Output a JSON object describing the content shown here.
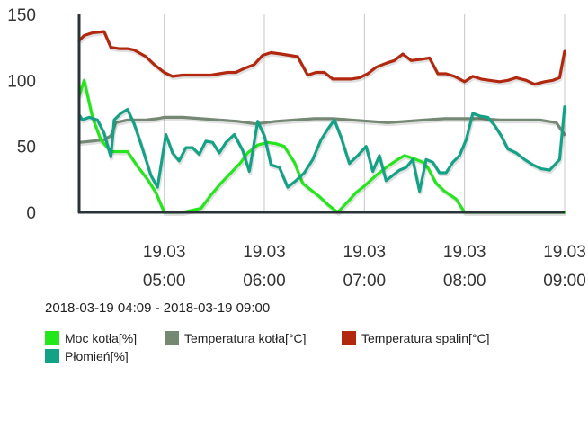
{
  "chart_data": {
    "type": "line",
    "title": "",
    "xlabel": "",
    "ylabel": "",
    "ylim": [
      0,
      150
    ],
    "yticks": [
      0,
      50,
      100,
      150
    ],
    "xlim": [
      "2018-03-19 04:09",
      "2018-03-19 09:00"
    ],
    "xticks": [
      {
        "t": "2018-03-19 05:00",
        "date": "19.03",
        "time": "05:00"
      },
      {
        "t": "2018-03-19 06:00",
        "date": "19.03",
        "time": "06:00"
      },
      {
        "t": "2018-03-19 07:00",
        "date": "19.03",
        "time": "07:00"
      },
      {
        "t": "2018-03-19 08:00",
        "date": "19.03",
        "time": "08:00"
      },
      {
        "t": "2018-03-19 09:00",
        "date": "19.03",
        "time": "09:00"
      }
    ],
    "grid": "vertical",
    "legend_position": "bottom",
    "range_label": "2018-03-19 04:09 - 2018-03-19 09:00",
    "series": [
      {
        "name": "Temperatura spalin[°C]",
        "color": "#b2280e",
        "x": [
          "04:09",
          "04:12",
          "04:17",
          "04:24",
          "04:28",
          "04:33",
          "04:38",
          "04:42",
          "04:49",
          "04:54",
          "05:00",
          "05:05",
          "05:11",
          "05:17",
          "05:23",
          "05:28",
          "05:33",
          "05:38",
          "05:43",
          "05:48",
          "05:54",
          "05:59",
          "06:04",
          "06:10",
          "06:15",
          "06:20",
          "06:26",
          "06:31",
          "06:36",
          "06:41",
          "06:46",
          "06:52",
          "06:57",
          "07:02",
          "07:07",
          "07:13",
          "07:18",
          "07:23",
          "07:28",
          "07:34",
          "07:39",
          "07:44",
          "07:49",
          "07:54",
          "08:00",
          "08:05",
          "08:10",
          "08:15",
          "08:21",
          "08:26",
          "08:31",
          "08:37",
          "08:42",
          "08:48",
          "08:53",
          "08:57",
          "09:00"
        ],
        "y": [
          130,
          134,
          136,
          137,
          125,
          124,
          124,
          123,
          118,
          112,
          106,
          103,
          104,
          104,
          104,
          104,
          105,
          106,
          106,
          109,
          112,
          119,
          121,
          120,
          119,
          118,
          104,
          106,
          106,
          101,
          101,
          101,
          102,
          105,
          110,
          113,
          115,
          120,
          115,
          116,
          117,
          105,
          105,
          103,
          99,
          103,
          101,
          100,
          99,
          100,
          102,
          100,
          97,
          99,
          100,
          102,
          122
        ]
      },
      {
        "name": "Temperatura kotła[°C]",
        "color": "#748873",
        "x": [
          "04:09",
          "04:17",
          "04:24",
          "04:28",
          "04:31",
          "04:38",
          "04:49",
          "04:56",
          "05:00",
          "05:11",
          "05:22",
          "05:33",
          "05:44",
          "05:55",
          "06:07",
          "06:18",
          "06:30",
          "06:41",
          "06:52",
          "07:03",
          "07:14",
          "07:25",
          "07:36",
          "07:48",
          "07:59",
          "08:10",
          "08:21",
          "08:33",
          "08:45",
          "08:55",
          "09:00"
        ],
        "y": [
          53,
          54,
          55,
          58,
          68,
          70,
          70,
          71,
          72,
          72,
          71,
          70,
          69,
          67,
          69,
          70,
          71,
          71,
          70,
          69,
          68,
          69,
          70,
          71,
          71,
          71,
          70,
          70,
          70,
          68,
          59
        ]
      },
      {
        "name": "Moc kotła[%]",
        "color": "#23e61b",
        "x": [
          "04:09",
          "04:12",
          "04:17",
          "04:22",
          "04:28",
          "04:33",
          "04:38",
          "04:44",
          "04:50",
          "04:55",
          "05:00",
          "05:11",
          "05:22",
          "05:28",
          "05:34",
          "05:40",
          "05:46",
          "05:50",
          "05:56",
          "06:02",
          "06:07",
          "06:12",
          "06:18",
          "06:23",
          "06:28",
          "06:33",
          "06:38",
          "06:44",
          "06:50",
          "06:55",
          "07:00",
          "07:07",
          "07:14",
          "07:20",
          "07:24",
          "07:29",
          "07:35",
          "07:38",
          "07:43",
          "07:48",
          "07:55",
          "08:00",
          "08:10",
          "08:20",
          "08:30",
          "08:40",
          "08:50",
          "09:00"
        ],
        "y": [
          88,
          100,
          72,
          55,
          46,
          46,
          46,
          35,
          25,
          15,
          0,
          0,
          3,
          13,
          22,
          30,
          38,
          45,
          51,
          53,
          52,
          50,
          38,
          22,
          17,
          12,
          6,
          0,
          8,
          15,
          20,
          28,
          35,
          40,
          43,
          41,
          38,
          34,
          22,
          16,
          10,
          0,
          0,
          0,
          0,
          0,
          0,
          0
        ]
      },
      {
        "name": "Płomień[%]",
        "color": "#14a287",
        "x": [
          "04:09",
          "04:11",
          "04:15",
          "04:20",
          "04:24",
          "04:28",
          "04:30",
          "04:34",
          "04:38",
          "04:42",
          "04:46",
          "04:52",
          "04:56",
          "05:01",
          "05:05",
          "05:09",
          "05:13",
          "05:17",
          "05:21",
          "05:25",
          "05:29",
          "05:33",
          "05:37",
          "05:42",
          "05:47",
          "05:51",
          "05:56",
          "06:00",
          "06:04",
          "06:09",
          "06:14",
          "06:19",
          "06:24",
          "06:29",
          "06:34",
          "06:38",
          "06:42",
          "06:46",
          "06:51",
          "06:56",
          "07:01",
          "07:05",
          "07:09",
          "07:13",
          "07:17",
          "07:21",
          "07:25",
          "07:29",
          "07:33",
          "07:37",
          "07:41",
          "07:45",
          "07:49",
          "07:53",
          "07:57",
          "08:01",
          "08:05",
          "08:09",
          "08:14",
          "08:18",
          "08:22",
          "08:26",
          "08:31",
          "08:36",
          "08:41",
          "08:46",
          "08:51",
          "08:57",
          "09:00"
        ],
        "y": [
          74,
          70,
          72,
          70,
          60,
          42,
          70,
          75,
          78,
          67,
          52,
          28,
          19,
          59,
          45,
          39,
          49,
          49,
          44,
          54,
          53,
          45,
          53,
          59,
          47,
          31,
          69,
          58,
          36,
          34,
          19,
          24,
          30,
          40,
          55,
          63,
          70,
          57,
          37,
          43,
          50,
          31,
          43,
          24,
          28,
          32,
          34,
          40,
          16,
          40,
          38,
          30,
          30,
          38,
          43,
          55,
          75,
          73,
          72,
          66,
          58,
          48,
          45,
          40,
          36,
          33,
          32,
          40,
          80
        ]
      }
    ],
    "legend": [
      {
        "name": "Moc kotła[%]",
        "color": "#23e61b"
      },
      {
        "name": "Temperatura kotła[°C]",
        "color": "#748873"
      },
      {
        "name": "Temperatura spalin[°C]",
        "color": "#b2280e"
      },
      {
        "name": "Płomień[%]",
        "color": "#14a287"
      }
    ]
  }
}
